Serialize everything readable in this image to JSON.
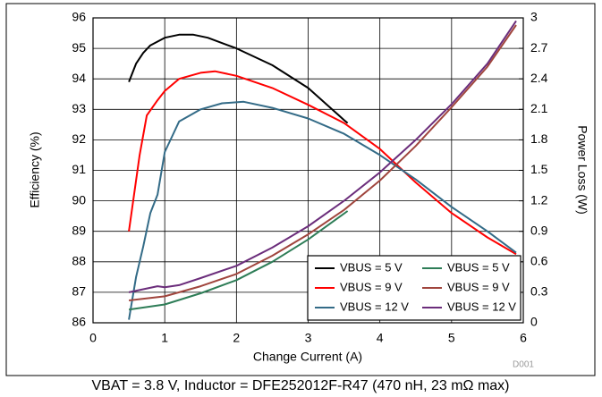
{
  "chart_data": {
    "type": "line",
    "xlabel": "Change Current (A)",
    "ylabel": "Efficiency (%)",
    "y2label": "Power Loss (W)",
    "caption": "VBAT = 3.8 V, Inductor = DFE252012F-R47 (470 nH, 23 mΩ max)",
    "figure_id": "D001",
    "xlim": [
      0,
      6
    ],
    "xticks": [
      0,
      1,
      2,
      3,
      4,
      5,
      6
    ],
    "ylim": [
      86,
      96
    ],
    "yticks": [
      86,
      87,
      88,
      89,
      90,
      91,
      92,
      93,
      94,
      95,
      96
    ],
    "y2lim": [
      0,
      3
    ],
    "y2ticks": [
      0,
      0.3,
      0.6,
      0.9,
      1.2,
      1.5,
      1.8,
      2.1,
      2.4,
      2.7,
      3
    ],
    "grid": true,
    "legend": "lower right",
    "series": [
      {
        "name": "VBUS = 5 V",
        "color": "#000000",
        "axis": "y",
        "x": [
          0.5,
          0.6,
          0.7,
          0.8,
          1.0,
          1.2,
          1.4,
          1.6,
          2.0,
          2.5,
          3.0,
          3.5,
          3.55
        ],
        "values": [
          93.9,
          94.5,
          94.85,
          95.1,
          95.35,
          95.45,
          95.45,
          95.35,
          95.0,
          94.45,
          93.7,
          92.65,
          92.55
        ]
      },
      {
        "name": "VBUS = 9 V",
        "color": "#ff0000",
        "axis": "y",
        "x": [
          0.5,
          0.65,
          0.75,
          0.9,
          1.0,
          1.2,
          1.5,
          1.7,
          2.0,
          2.5,
          3.0,
          3.5,
          4.0,
          4.5,
          5.0,
          5.5,
          5.9
        ],
        "values": [
          89.0,
          91.5,
          92.8,
          93.3,
          93.6,
          94.0,
          94.2,
          94.25,
          94.1,
          93.7,
          93.15,
          92.55,
          91.7,
          90.6,
          89.6,
          88.8,
          88.25
        ]
      },
      {
        "name": "VBUS = 12 V",
        "color": "#336b87",
        "axis": "y",
        "x": [
          0.5,
          0.55,
          0.6,
          0.7,
          0.8,
          0.9,
          1.0,
          1.1,
          1.2,
          1.5,
          1.8,
          2.1,
          2.5,
          3.0,
          3.5,
          4.0,
          4.5,
          5.0,
          5.5,
          5.9
        ],
        "values": [
          86.1,
          86.8,
          87.5,
          88.5,
          89.6,
          90.2,
          91.6,
          92.1,
          92.6,
          93.0,
          93.2,
          93.25,
          93.05,
          92.7,
          92.2,
          91.5,
          90.7,
          89.8,
          89.0,
          88.3
        ]
      },
      {
        "name": "VBUS = 5 V",
        "color": "#2e7d57",
        "axis": "y2",
        "x": [
          0.5,
          1.0,
          1.5,
          2.0,
          2.5,
          3.0,
          3.55
        ],
        "values": [
          0.13,
          0.18,
          0.29,
          0.42,
          0.6,
          0.82,
          1.1
        ]
      },
      {
        "name": "VBUS = 9 V",
        "color": "#a0453d",
        "axis": "y2",
        "x": [
          0.5,
          1.0,
          1.5,
          2.0,
          2.5,
          3.0,
          3.5,
          4.0,
          4.5,
          5.0,
          5.5,
          5.9
        ],
        "values": [
          0.22,
          0.26,
          0.36,
          0.48,
          0.66,
          0.87,
          1.11,
          1.4,
          1.74,
          2.12,
          2.52,
          2.93
        ]
      },
      {
        "name": "VBUS = 12 V",
        "color": "#6b2d7b",
        "axis": "y2",
        "x": [
          0.5,
          0.7,
          0.9,
          1.0,
          1.2,
          1.5,
          2.0,
          2.5,
          3.0,
          3.5,
          4.0,
          4.5,
          5.0,
          5.5,
          5.9
        ],
        "values": [
          0.3,
          0.33,
          0.36,
          0.35,
          0.37,
          0.44,
          0.56,
          0.74,
          0.95,
          1.2,
          1.48,
          1.8,
          2.15,
          2.55,
          2.97
        ]
      }
    ]
  }
}
